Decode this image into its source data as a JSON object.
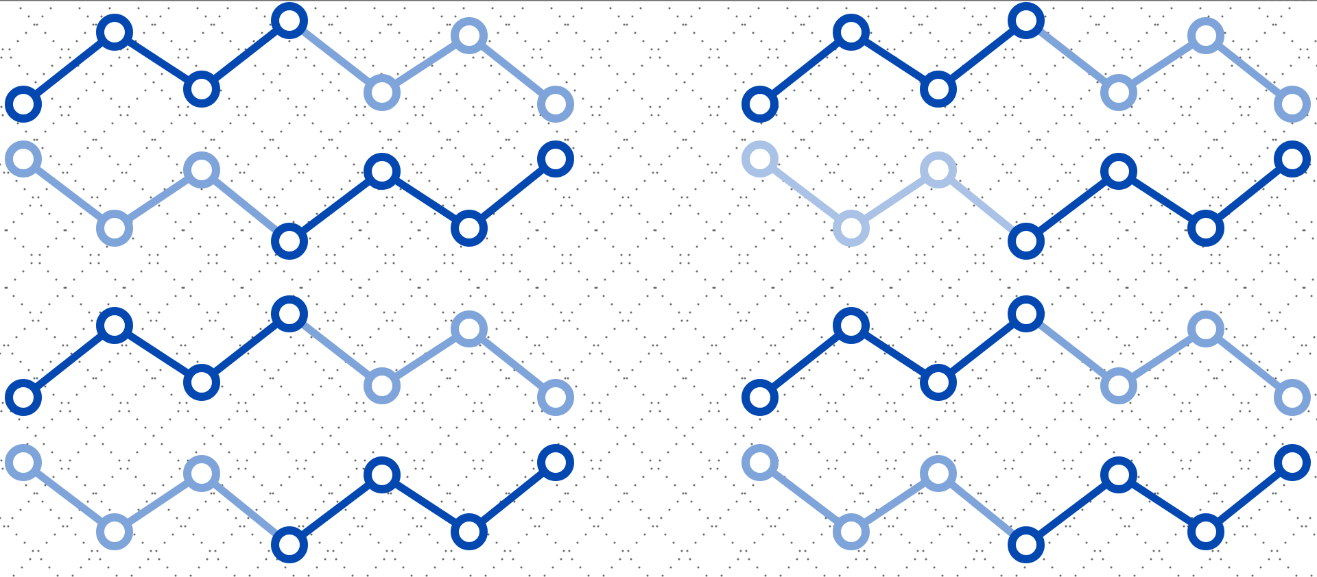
{
  "colors": {
    "background": "#ffffff",
    "dark_blue": "#0348b0",
    "medium_blue": "#7fa4d9",
    "light_blue": "#a9c2e6",
    "dot_grid": "#6a6a6a"
  },
  "pattern": {
    "panels": [
      {
        "name": "left-panel",
        "rows": [
          {
            "top_chain": [
              "dark",
              "dark",
              "dark",
              "dark",
              "medium",
              "medium",
              "medium"
            ]
          },
          {
            "bottom_chain": [
              "medium",
              "medium",
              "medium",
              "dark",
              "dark",
              "dark",
              "dark"
            ]
          },
          {
            "top_chain": [
              "dark",
              "dark",
              "dark",
              "dark",
              "medium",
              "medium",
              "medium"
            ]
          },
          {
            "bottom_chain": [
              "medium",
              "medium",
              "medium",
              "dark",
              "dark",
              "dark",
              "dark"
            ]
          }
        ]
      },
      {
        "name": "right-panel",
        "rows": [
          {
            "top_chain": [
              "dark",
              "dark",
              "dark",
              "dark",
              "medium",
              "medium",
              "medium"
            ]
          },
          {
            "bottom_chain": [
              "light",
              "light",
              "light",
              "dark",
              "dark",
              "dark",
              "dark"
            ]
          },
          {
            "top_chain": [
              "dark",
              "dark",
              "dark",
              "dark",
              "medium",
              "medium",
              "medium"
            ]
          },
          {
            "bottom_chain": [
              "medium",
              "medium",
              "medium",
              "dark",
              "dark",
              "dark",
              "dark"
            ]
          }
        ]
      }
    ]
  }
}
